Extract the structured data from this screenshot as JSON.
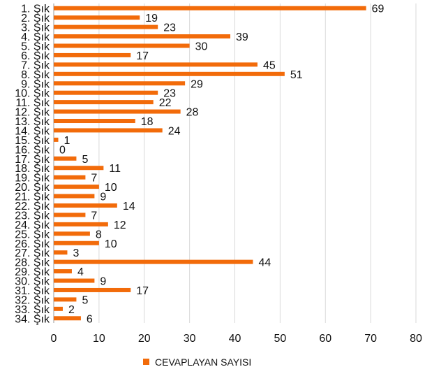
{
  "chart_data": {
    "type": "bar",
    "orientation": "horizontal",
    "categories": [
      "1. Şık",
      "2. Şık",
      "3. Şık",
      "4. Şık",
      "5. Şık",
      "6. Şık",
      "7. Şık",
      "8. Şık",
      "9. Şık",
      "10. Şık",
      "11. Şık",
      "12. Şık",
      "13. Şık",
      "14. Şık",
      "15. Şık",
      "16. Şık",
      "17. Şık",
      "18. Şık",
      "19. Şık",
      "20. Şık",
      "21. Şık",
      "22. Şık",
      "23. Şık",
      "24. Şık",
      "25. Şık",
      "26. Şık",
      "27. Şık",
      "28. Şık",
      "29. Şık",
      "30. Şık",
      "31. Şık",
      "32. Şık",
      "33. Şık",
      "34. Şık"
    ],
    "series": [
      {
        "name": "CEVAPLAYAN SAYISI",
        "color": "#F26B0A",
        "values": [
          69,
          19,
          23,
          39,
          30,
          17,
          45,
          51,
          29,
          23,
          22,
          28,
          18,
          24,
          1,
          0,
          5,
          11,
          7,
          10,
          9,
          14,
          7,
          12,
          8,
          10,
          3,
          44,
          4,
          9,
          17,
          5,
          2,
          6
        ]
      }
    ],
    "xlim": [
      0,
      80
    ],
    "xticks": [
      0,
      10,
      20,
      30,
      40,
      50,
      60,
      70,
      80
    ],
    "grid": true,
    "legend_position": "bottom",
    "data_labels": true
  }
}
